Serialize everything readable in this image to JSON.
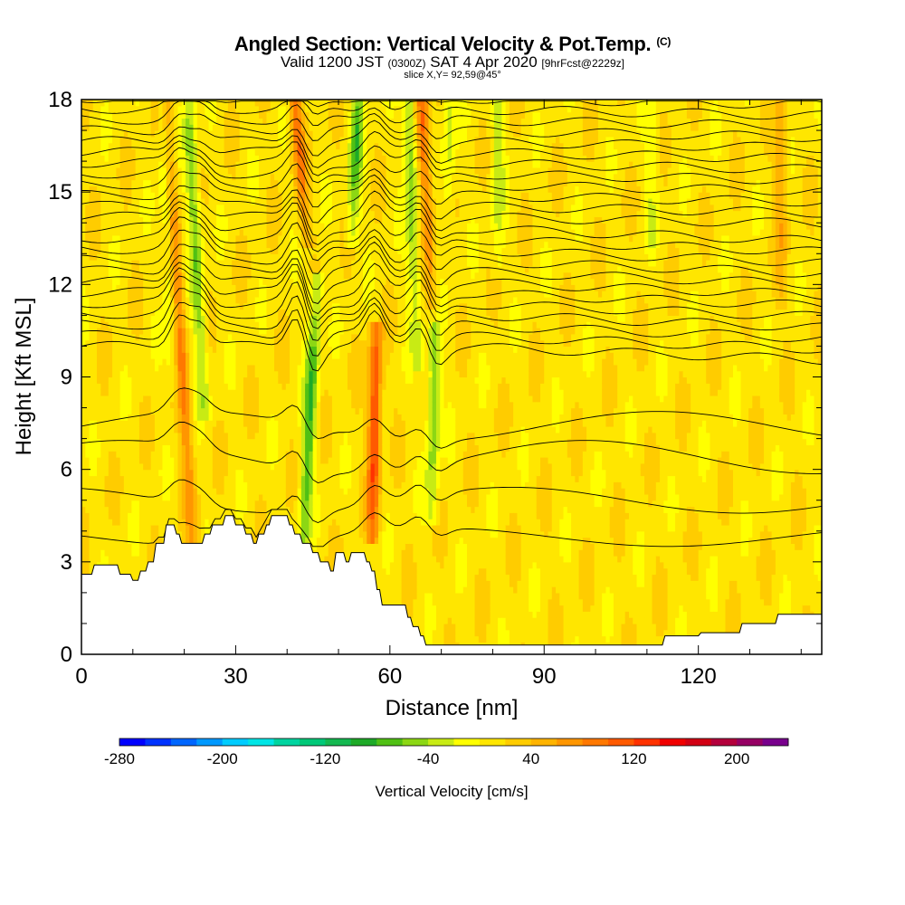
{
  "chart_data": {
    "type": "heatmap",
    "title": "Angled Section: Vertical Velocity & Pot.Temp.",
    "title_unit": "(C)",
    "valid_prefix": "Valid 1200 JST",
    "valid_utc": "(0300Z)",
    "valid_date": "SAT 4 Apr 2020",
    "forecast": "[9hrFcst@2229z]",
    "slice": "slice X,Y= 92,59@45°",
    "xlabel": "Distance [nm]",
    "ylabel": "Height [Kft MSL]",
    "xlim": [
      0,
      144
    ],
    "ylim": [
      0,
      18
    ],
    "xticks": [
      0,
      30,
      60,
      90,
      120
    ],
    "yticks": [
      0,
      3,
      6,
      9,
      12,
      15,
      18
    ],
    "colorbar": {
      "label": "Vertical Velocity [cm/s]",
      "min": -280,
      "max": 240,
      "step": 20,
      "ticks": [
        -280,
        -200,
        -120,
        -40,
        40,
        120,
        200
      ],
      "colors": [
        "#0000ff",
        "#0033ff",
        "#0066ff",
        "#0099ff",
        "#00ccff",
        "#00e5e5",
        "#00d4a0",
        "#00c878",
        "#14b850",
        "#1eaa28",
        "#50c014",
        "#8cd714",
        "#c8eb14",
        "#ffff00",
        "#ffe600",
        "#ffcc00",
        "#ffb400",
        "#ff9600",
        "#ff7800",
        "#ff5a00",
        "#ff3200",
        "#f00000",
        "#d20014",
        "#b4003c",
        "#960064",
        "#78008c"
      ]
    },
    "bands": [
      {
        "x": 19.0,
        "z0": 3.5,
        "z1": 18,
        "w": 70,
        "zpeak": 11,
        "tilt": -0.35
      },
      {
        "x": 22.0,
        "z0": 8.5,
        "z1": 18,
        "w": -70,
        "zpeak": 14,
        "tilt": -0.3
      },
      {
        "x": 16.5,
        "z0": 9,
        "z1": 18,
        "w": -40,
        "zpeak": 15,
        "tilt": -0.2
      },
      {
        "x": 42.0,
        "z0": 14,
        "z1": 18,
        "w": 80,
        "zpeak": 17,
        "tilt": -0.5
      },
      {
        "x": 44.5,
        "z0": 4.5,
        "z1": 11.5,
        "w": -90,
        "zpeak": 8,
        "tilt": 0.3
      },
      {
        "x": 53.5,
        "z0": 14,
        "z1": 18,
        "w": -80,
        "zpeak": 16.5,
        "tilt": 0.3
      },
      {
        "x": 57.0,
        "z0": 4.5,
        "z1": 10,
        "w": 120,
        "zpeak": 7.5,
        "tilt": 0.1
      },
      {
        "x": 66.5,
        "z0": 12,
        "z1": 18,
        "w": 90,
        "zpeak": 17,
        "tilt": -0.3
      },
      {
        "x": 64.0,
        "z0": 10,
        "z1": 18,
        "w": -70,
        "zpeak": 16,
        "tilt": -0.2
      },
      {
        "x": 68.5,
        "z0": 5,
        "z1": 10,
        "w": -70,
        "zpeak": 8,
        "tilt": 0.1
      },
      {
        "x": 71.5,
        "z0": 14,
        "z1": 18,
        "w": -40,
        "zpeak": 17,
        "tilt": 0
      },
      {
        "x": 81.0,
        "z0": 13,
        "z1": 18,
        "w": -40,
        "zpeak": 16,
        "tilt": 0
      },
      {
        "x": 111.0,
        "z0": 14,
        "z1": 18,
        "w": -30,
        "zpeak": 16,
        "tilt": 0
      },
      {
        "x": 136.0,
        "z0": 12,
        "z1": 18,
        "w": 40,
        "zpeak": 15.5,
        "tilt": 0
      }
    ],
    "terrain": [
      [
        0,
        2.6
      ],
      [
        2,
        2.6
      ],
      [
        2.5,
        2.9
      ],
      [
        7,
        2.9
      ],
      [
        7.5,
        2.6
      ],
      [
        9.5,
        2.6
      ],
      [
        10,
        2.4
      ],
      [
        11,
        2.4
      ],
      [
        11.5,
        2.7
      ],
      [
        12.5,
        2.7
      ],
      [
        13,
        3.0
      ],
      [
        14,
        3.0
      ],
      [
        14.5,
        3.6
      ],
      [
        16,
        3.6
      ],
      [
        16.5,
        4.2
      ],
      [
        18,
        4.2
      ],
      [
        18.5,
        3.9
      ],
      [
        19,
        3.9
      ],
      [
        19.5,
        3.6
      ],
      [
        23.5,
        3.6
      ],
      [
        24,
        3.9
      ],
      [
        25,
        3.9
      ],
      [
        25.5,
        4.2
      ],
      [
        27.5,
        4.2
      ],
      [
        28,
        4.5
      ],
      [
        29.5,
        4.5
      ],
      [
        30,
        4.2
      ],
      [
        31.5,
        4.2
      ],
      [
        32,
        3.9
      ],
      [
        33,
        3.9
      ],
      [
        33.5,
        3.6
      ],
      [
        34,
        3.6
      ],
      [
        34.5,
        3.9
      ],
      [
        35.5,
        3.9
      ],
      [
        36,
        4.2
      ],
      [
        36.5,
        4.2
      ],
      [
        37,
        4.5
      ],
      [
        40,
        4.5
      ],
      [
        40.5,
        4.2
      ],
      [
        41,
        4.2
      ],
      [
        41.5,
        3.9
      ],
      [
        42.5,
        3.9
      ],
      [
        43,
        3.6
      ],
      [
        44.5,
        3.6
      ],
      [
        45,
        3.3
      ],
      [
        46,
        3.3
      ],
      [
        46.5,
        3.0
      ],
      [
        48,
        3.0
      ],
      [
        48.5,
        2.7
      ],
      [
        49,
        2.7
      ],
      [
        49.5,
        3.3
      ],
      [
        51,
        3.3
      ],
      [
        51.5,
        3.0
      ],
      [
        52,
        3.0
      ],
      [
        52.5,
        3.3
      ],
      [
        55,
        3.3
      ],
      [
        55.5,
        3.0
      ],
      [
        56,
        3.0
      ],
      [
        56.5,
        2.7
      ],
      [
        57,
        2.7
      ],
      [
        57.5,
        2.1
      ],
      [
        58,
        2.1
      ],
      [
        58.5,
        1.6
      ],
      [
        63,
        1.6
      ],
      [
        63.5,
        1.2
      ],
      [
        64,
        1.2
      ],
      [
        64.5,
        0.9
      ],
      [
        65.5,
        0.9
      ],
      [
        66,
        0.6
      ],
      [
        66.5,
        0.6
      ],
      [
        67,
        0.3
      ],
      [
        113,
        0.3
      ],
      [
        113.5,
        0.6
      ],
      [
        120,
        0.6
      ],
      [
        120.5,
        0.7
      ],
      [
        128,
        0.7
      ],
      [
        128.5,
        1.0
      ],
      [
        135,
        1.0
      ],
      [
        135.5,
        1.3
      ],
      [
        144,
        1.3
      ]
    ]
  }
}
